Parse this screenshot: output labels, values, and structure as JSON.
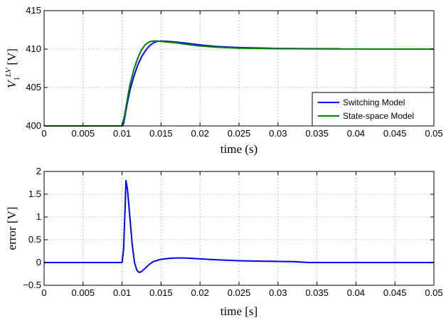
{
  "chart_data": [
    {
      "type": "line",
      "xlabel": "time (s)",
      "ylabel": "V_1^{LV} [V]",
      "ylabel_main": "V",
      "ylabel_sub": "1",
      "ylabel_sup": "LV",
      "ylabel_unit": "[V]",
      "xlim": [
        0,
        0.05
      ],
      "ylim": [
        400,
        415
      ],
      "xticks": [
        0,
        0.005,
        0.01,
        0.015,
        0.02,
        0.025,
        0.03,
        0.035,
        0.04,
        0.045,
        0.05
      ],
      "xtick_labels": [
        "0",
        "0.005",
        "0.01",
        "0.015",
        "0.02",
        "0.025",
        "0.03",
        "0.035",
        "0.04",
        "0.045",
        "0.05"
      ],
      "yticks": [
        400,
        405,
        410,
        415
      ],
      "ytick_labels": [
        "400",
        "405",
        "410",
        "415"
      ],
      "grid": true,
      "legend_position": "bottom-right",
      "series": [
        {
          "name": "Switching Model",
          "color": "#0000ff",
          "x": [
            0,
            0.01,
            0.0102,
            0.0106,
            0.011,
            0.0115,
            0.012,
            0.0125,
            0.013,
            0.0135,
            0.014,
            0.0145,
            0.015,
            0.016,
            0.017,
            0.018,
            0.02,
            0.022,
            0.025,
            0.03,
            0.038
          ],
          "y": [
            400,
            400,
            400.3,
            402.6,
            404.6,
            406.4,
            407.9,
            409.0,
            409.8,
            410.4,
            410.8,
            411.0,
            411.05,
            411.0,
            410.9,
            410.8,
            410.55,
            410.35,
            410.2,
            410.08,
            410.03
          ]
        },
        {
          "name": "State-space Model",
          "color": "#008000",
          "x": [
            0,
            0.01,
            0.0103,
            0.0107,
            0.011,
            0.0115,
            0.012,
            0.0125,
            0.013,
            0.0135,
            0.014,
            0.0145,
            0.015,
            0.016,
            0.017,
            0.018,
            0.02,
            0.022,
            0.025,
            0.03,
            0.035,
            0.04,
            0.045,
            0.05
          ],
          "y": [
            400,
            400,
            401.3,
            403.6,
            405.3,
            407.3,
            408.8,
            409.9,
            410.6,
            410.95,
            411.05,
            411.05,
            411.0,
            410.9,
            410.8,
            410.65,
            410.4,
            410.25,
            410.12,
            410.05,
            410.02,
            410.01,
            410.0,
            410.0
          ]
        }
      ]
    },
    {
      "type": "line",
      "xlabel": "time [s]",
      "ylabel": "error [V]",
      "xlim": [
        0,
        0.05
      ],
      "ylim": [
        -0.5,
        2
      ],
      "xticks": [
        0,
        0.005,
        0.01,
        0.015,
        0.02,
        0.025,
        0.03,
        0.035,
        0.04,
        0.045,
        0.05
      ],
      "xtick_labels": [
        "0",
        "0.005",
        "0.01",
        "0.015",
        "0.02",
        "0.025",
        "0.03",
        "0.035",
        "0.04",
        "0.045",
        "0.05"
      ],
      "yticks": [
        -0.5,
        0,
        0.5,
        1,
        1.5,
        2
      ],
      "ytick_labels": [
        "−0.5",
        "0",
        "0.5",
        "1",
        "1.5",
        "2"
      ],
      "grid": true,
      "series": [
        {
          "color": "#0000ff",
          "x": [
            0,
            0.01,
            0.0102,
            0.0104,
            0.0105,
            0.0107,
            0.011,
            0.0113,
            0.0116,
            0.0119,
            0.0122,
            0.0125,
            0.013,
            0.0135,
            0.014,
            0.015,
            0.016,
            0.017,
            0.018,
            0.019,
            0.02,
            0.022,
            0.025,
            0.028,
            0.032,
            0.034,
            0.04,
            0.045,
            0.05
          ],
          "y": [
            0,
            0,
            0.3,
            1.25,
            1.8,
            1.6,
            1.0,
            0.4,
            0.0,
            -0.17,
            -0.22,
            -0.2,
            -0.12,
            -0.04,
            0.02,
            0.07,
            0.09,
            0.1,
            0.1,
            0.09,
            0.08,
            0.06,
            0.04,
            0.03,
            0.02,
            0.0,
            0.0,
            0.0,
            0.0
          ]
        }
      ]
    }
  ]
}
